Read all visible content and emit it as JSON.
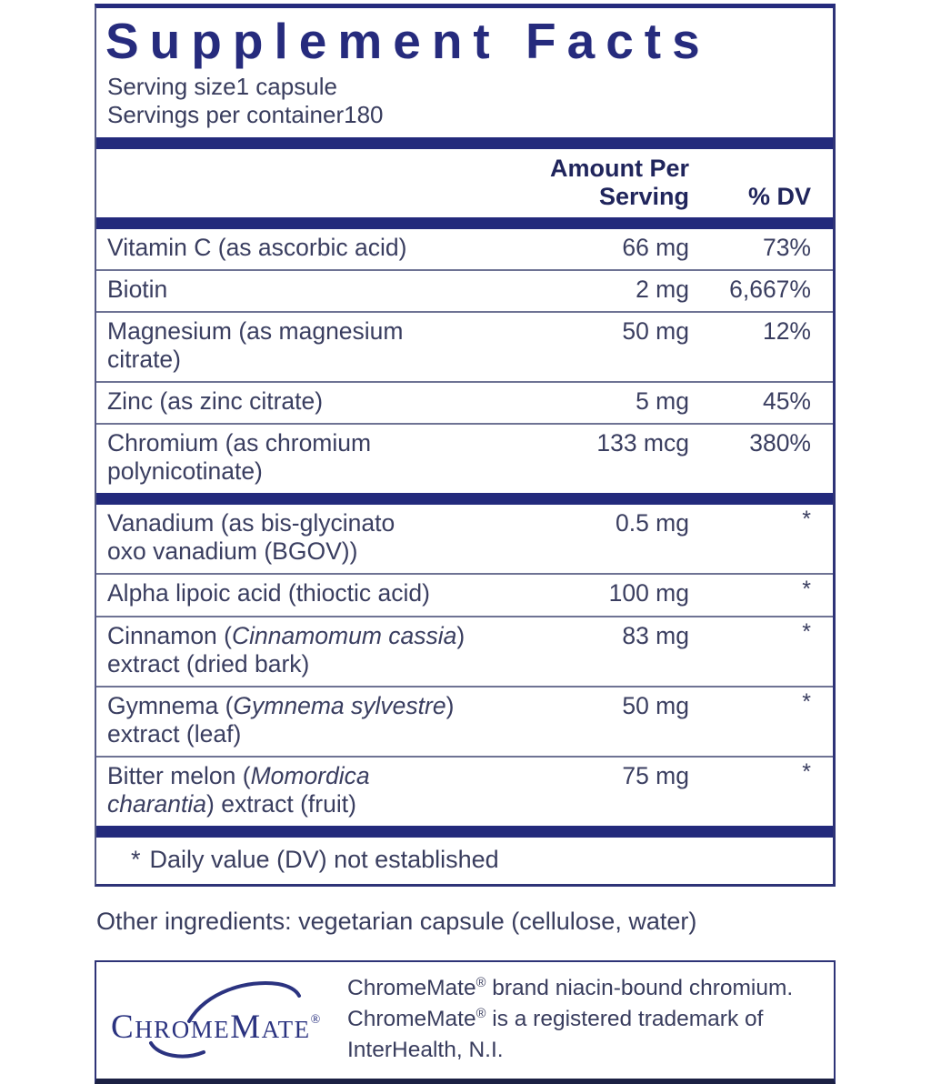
{
  "title": "Supplement Facts",
  "serving": {
    "size_label": "Serving size",
    "size_value": "1 capsule",
    "container_label": "Servings per container",
    "container_value": "180"
  },
  "table": {
    "columns": {
      "amount": "Amount Per Serving",
      "dv": "% DV"
    },
    "rows": [
      {
        "lines": [
          [
            {
              "t": "Vitamin C (as ascorbic acid)"
            }
          ]
        ],
        "amount": "66 mg",
        "dv": "73%"
      },
      {
        "lines": [
          [
            {
              "t": "Biotin"
            }
          ]
        ],
        "amount": "2 mg",
        "dv": "6,667%"
      },
      {
        "lines": [
          [
            {
              "t": "Magnesium (as magnesium citrate)"
            }
          ]
        ],
        "amount": "50 mg",
        "dv": "12%"
      },
      {
        "lines": [
          [
            {
              "t": "Zinc (as zinc citrate)"
            }
          ]
        ],
        "amount": "5 mg",
        "dv": "45%"
      },
      {
        "lines": [
          [
            {
              "t": "Chromium (as chromium polynicotinate)"
            }
          ]
        ],
        "amount": "133 mcg",
        "dv": "380%",
        "bar_after": true
      },
      {
        "lines": [
          [
            {
              "t": "Vanadium (as bis-glycinato"
            }
          ],
          [
            {
              "t": "oxo vanadium (BGOV))"
            }
          ]
        ],
        "amount": "0.5 mg",
        "dv": "*"
      },
      {
        "lines": [
          [
            {
              "t": "Alpha lipoic acid (thioctic acid)"
            }
          ]
        ],
        "amount": "100 mg",
        "dv": "*"
      },
      {
        "lines": [
          [
            {
              "t": "Cinnamon ("
            },
            {
              "t": "Cinnamomum cassia",
              "i": true
            },
            {
              "t": ")"
            }
          ],
          [
            {
              "t": "extract (dried bark)"
            }
          ]
        ],
        "amount": "83 mg",
        "dv": "*"
      },
      {
        "lines": [
          [
            {
              "t": "Gymnema ("
            },
            {
              "t": "Gymnema sylvestre",
              "i": true
            },
            {
              "t": ")"
            }
          ],
          [
            {
              "t": "extract (leaf)"
            }
          ]
        ],
        "amount": "50 mg",
        "dv": "*"
      },
      {
        "lines": [
          [
            {
              "t": "Bitter melon ("
            },
            {
              "t": "Momordica",
              "i": true
            }
          ],
          [
            {
              "t": "charantia",
              "i": true
            },
            {
              "t": ") extract (fruit)"
            }
          ]
        ],
        "amount": "75 mg",
        "dv": "*",
        "bar_after": true
      }
    ],
    "footnote": {
      "marker": "*",
      "text": "Daily value (DV) not established"
    }
  },
  "other_ingredients": "Other ingredients: vegetarian capsule (cellulose, water)",
  "chromemate": {
    "logo_text": "ChromeMate",
    "logo_reg": "®",
    "lines": [
      [
        {
          "t": "ChromeMate"
        },
        {
          "t": "®",
          "sup": true
        },
        {
          "t": " brand niacin-bound chromium."
        }
      ],
      [
        {
          "t": "ChromeMate"
        },
        {
          "t": "®",
          "sup": true
        },
        {
          "t": " is a registered trademark of"
        }
      ],
      [
        {
          "t": "InterHealth, N.I."
        }
      ]
    ]
  },
  "colors": {
    "navy": "#232a7c",
    "text": "#3a3e60",
    "rule": "#6e7394",
    "border": "#2e3377",
    "bottom_border": "#1c2144"
  }
}
